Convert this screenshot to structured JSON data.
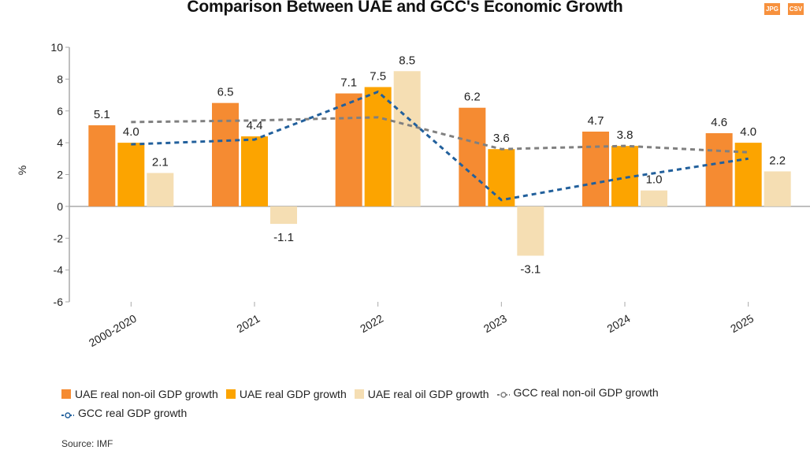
{
  "header": {
    "title": "Comparison Between UAE and GCC's Economic Growth",
    "download_jpg": "JPG",
    "download_csv": "CSV"
  },
  "source": "Source: IMF",
  "chart_data": {
    "type": "bar",
    "title": "Comparison Between UAE and GCC's Economic Growth",
    "xlabel": "",
    "ylabel": "%",
    "ylim": [
      -6,
      10
    ],
    "yticks": [
      10,
      8,
      6,
      4,
      2,
      0,
      -2,
      -4,
      -6
    ],
    "grid": false,
    "legend_position": "bottom",
    "categories": [
      "2000-2020",
      "2021",
      "2022",
      "2023",
      "2024",
      "2025"
    ],
    "series": [
      {
        "name": "UAE real non-oil GDP growth",
        "kind": "bar",
        "color": "#f58b32",
        "values": [
          5.1,
          6.5,
          7.1,
          6.2,
          4.7,
          4.6
        ],
        "labels": [
          "5.1",
          "6.5",
          "7.1",
          "6.2",
          "4.7",
          "4.6"
        ]
      },
      {
        "name": "UAE real GDP growth",
        "kind": "bar",
        "color": "#fca400",
        "values": [
          4.0,
          4.4,
          7.5,
          3.6,
          3.8,
          4.0
        ],
        "labels": [
          "4.0",
          "4.4",
          "7.5",
          "3.6",
          "3.8",
          "4.0"
        ]
      },
      {
        "name": "UAE real oil GDP growth",
        "kind": "bar",
        "color": "#f5deb3",
        "values": [
          2.1,
          -1.1,
          8.5,
          -3.1,
          1.0,
          2.2
        ],
        "labels": [
          "2.1",
          "-1.1",
          "8.5",
          "-3.1",
          "1.0",
          "2.2"
        ]
      },
      {
        "name": "GCC real non-oil GDP growth",
        "kind": "line",
        "color": "#808080",
        "values": [
          5.3,
          5.4,
          5.6,
          3.6,
          3.8,
          3.4
        ]
      },
      {
        "name": "GCC real GDP growth",
        "kind": "line",
        "color": "#22609c",
        "values": [
          3.9,
          4.2,
          7.2,
          0.4,
          1.8,
          3.0
        ]
      }
    ]
  }
}
